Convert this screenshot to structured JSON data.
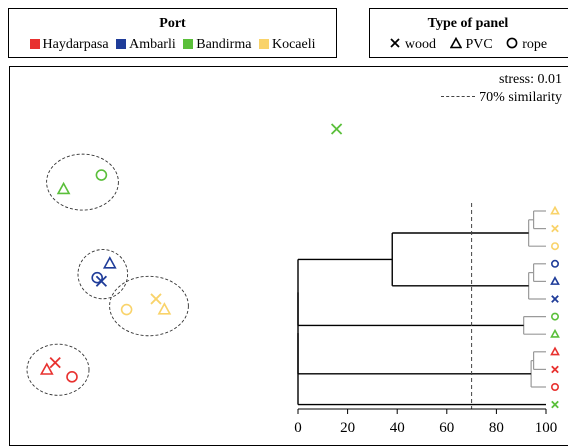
{
  "legend_port": {
    "title": "Port",
    "items": [
      {
        "label": "Haydarpasa",
        "color": "#e8312f"
      },
      {
        "label": "Ambarli",
        "color": "#1f3c99"
      },
      {
        "label": "Bandirma",
        "color": "#5abf3a"
      },
      {
        "label": "Kocaeli",
        "color": "#f9d36a"
      }
    ]
  },
  "legend_panel": {
    "title": "Type of panel",
    "items": [
      {
        "label": "wood",
        "marker": "x"
      },
      {
        "label": "PVC",
        "marker": "triangle"
      },
      {
        "label": "rope",
        "marker": "circle"
      }
    ]
  },
  "annotations": {
    "stress": "stress: 0.01",
    "similarity": "70% similarity"
  },
  "chart_data": [
    {
      "type": "scatter",
      "title": "",
      "xlabel": "",
      "ylabel": "",
      "points": [
        {
          "port": "Bandirma",
          "panel": "wood",
          "x": 0.78,
          "y": 0.87
        },
        {
          "port": "Bandirma",
          "panel": "rope",
          "x": 0.22,
          "y": 0.74
        },
        {
          "port": "Bandirma",
          "panel": "PVC",
          "x": 0.13,
          "y": 0.7
        },
        {
          "port": "Ambarli",
          "panel": "PVC",
          "x": 0.24,
          "y": 0.49
        },
        {
          "port": "Ambarli",
          "panel": "rope",
          "x": 0.21,
          "y": 0.45
        },
        {
          "port": "Ambarli",
          "panel": "wood",
          "x": 0.22,
          "y": 0.44
        },
        {
          "port": "Kocaeli",
          "panel": "wood",
          "x": 0.35,
          "y": 0.39
        },
        {
          "port": "Kocaeli",
          "panel": "rope",
          "x": 0.28,
          "y": 0.36
        },
        {
          "port": "Kocaeli",
          "panel": "PVC",
          "x": 0.37,
          "y": 0.36
        },
        {
          "port": "Haydarpasa",
          "panel": "wood",
          "x": 0.11,
          "y": 0.21
        },
        {
          "port": "Haydarpasa",
          "panel": "PVC",
          "x": 0.09,
          "y": 0.19
        },
        {
          "port": "Haydarpasa",
          "panel": "rope",
          "x": 0.15,
          "y": 0.17
        }
      ],
      "groups": [
        {
          "members": [
            "Bandirma-rope",
            "Bandirma-PVC"
          ]
        },
        {
          "members": [
            "Ambarli-PVC",
            "Ambarli-rope",
            "Ambarli-wood"
          ]
        },
        {
          "members": [
            "Kocaeli-wood",
            "Kocaeli-rope",
            "Kocaeli-PVC"
          ]
        },
        {
          "members": [
            "Haydarpasa-wood",
            "Haydarpasa-PVC",
            "Haydarpasa-rope"
          ]
        }
      ]
    },
    {
      "type": "dendrogram",
      "title": "",
      "xlabel": "",
      "xlim": [
        0,
        100
      ],
      "xticks": [
        0,
        20,
        40,
        60,
        80,
        100
      ],
      "cutoff": 70,
      "leaves": [
        {
          "port": "Kocaeli",
          "panel": "PVC"
        },
        {
          "port": "Kocaeli",
          "panel": "wood"
        },
        {
          "port": "Kocaeli",
          "panel": "rope"
        },
        {
          "port": "Ambarli",
          "panel": "rope"
        },
        {
          "port": "Ambarli",
          "panel": "PVC"
        },
        {
          "port": "Ambarli",
          "panel": "wood"
        },
        {
          "port": "Bandirma",
          "panel": "rope"
        },
        {
          "port": "Bandirma",
          "panel": "PVC"
        },
        {
          "port": "Haydarpasa",
          "panel": "PVC"
        },
        {
          "port": "Haydarpasa",
          "panel": "wood"
        },
        {
          "port": "Haydarpasa",
          "panel": "rope"
        },
        {
          "port": "Bandirma",
          "panel": "wood"
        }
      ],
      "merges": [
        {
          "a": "L0",
          "b": "L1",
          "similarity": 95,
          "id": "M1"
        },
        {
          "a": "M1",
          "b": "L2",
          "similarity": 93,
          "id": "M2"
        },
        {
          "a": "L3",
          "b": "L4",
          "similarity": 95,
          "id": "M3"
        },
        {
          "a": "M3",
          "b": "L5",
          "similarity": 93,
          "id": "M4"
        },
        {
          "a": "L6",
          "b": "L7",
          "similarity": 91,
          "id": "M5"
        },
        {
          "a": "L8",
          "b": "L9",
          "similarity": 95,
          "id": "M6"
        },
        {
          "a": "M6",
          "b": "L10",
          "similarity": 94,
          "id": "M7"
        },
        {
          "a": "M2",
          "b": "M4",
          "similarity": 38,
          "id": "M8"
        },
        {
          "a": "M8",
          "b": "M5",
          "similarity": 0,
          "id": "M9"
        },
        {
          "a": "M9",
          "b": "M7",
          "similarity": 0,
          "id": "M10"
        },
        {
          "a": "M10",
          "b": "L11",
          "similarity": 0,
          "id": "M11"
        }
      ]
    }
  ]
}
